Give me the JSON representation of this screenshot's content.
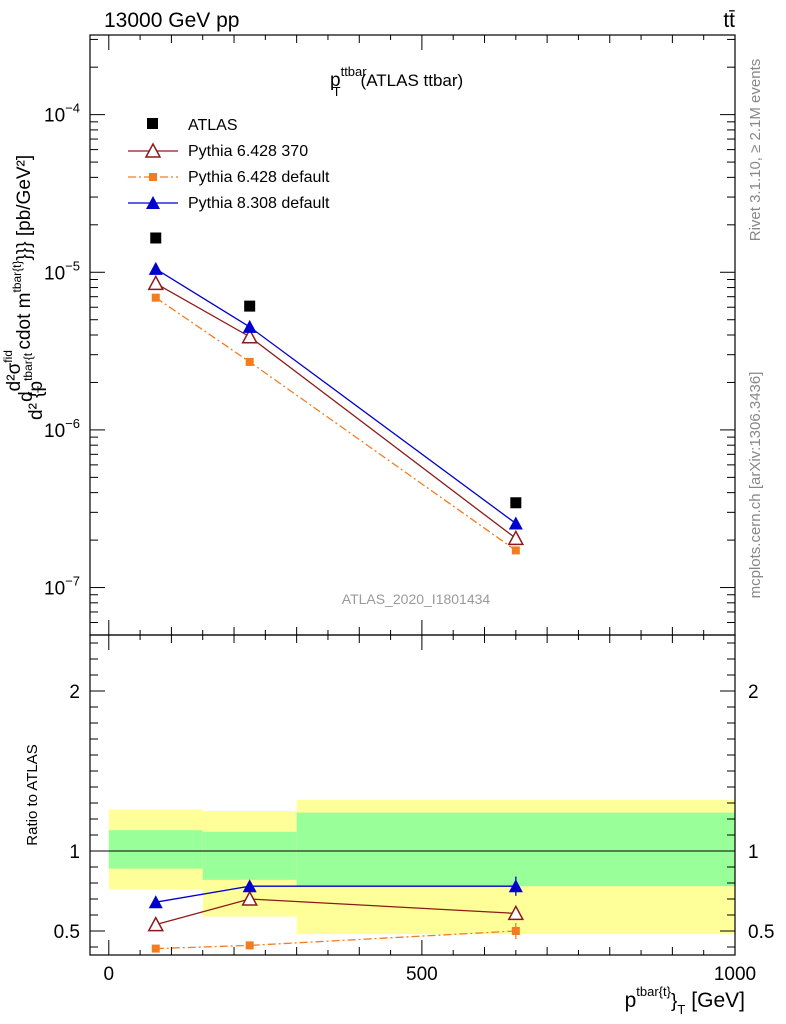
{
  "header": {
    "left": "13000 GeV pp",
    "right": "tt̄",
    "side_top": "Rivet 3.1.10, ≥ 2.1M events",
    "side_bottom": "mcplots.cern.ch [arXiv:1306.3436]",
    "watermark": "ATLAS_2020_I1801434"
  },
  "chart_data": [
    {
      "type": "scatter",
      "panel": "main",
      "title_main": "p",
      "title_sub": "T",
      "title_sup": "ttbar",
      "title_rest": "(ATLAS ttbar)",
      "ylabel": "d²σ^fid / d²{p_T^tbar{t}} cdot m^tbar{t}}} [pb/GeV²]",
      "ylabel_parts": {
        "d": "d",
        "num": "d²σ",
        "num_sup": "fid",
        "den": "d² {p",
        "den_sup": "tbar{t",
        "den_sub": "T",
        "rest": "cdot m",
        "rest_sup": "tbar{t}",
        "tail": "}}} [pb/GeV²]"
      },
      "y_scale": "log",
      "ylim": [
        5e-08,
        0.00032
      ],
      "xlim": [
        -30,
        1000
      ],
      "y_ticks": [
        {
          "v": 1e-07,
          "base": "10",
          "exp": "−7"
        },
        {
          "v": 1e-06,
          "base": "10",
          "exp": "−6"
        },
        {
          "v": 1e-05,
          "base": "10",
          "exp": "−5"
        },
        {
          "v": 0.0001,
          "base": "10",
          "exp": "−4"
        }
      ],
      "legend_position": "top-left",
      "series": [
        {
          "name": "ATLAS",
          "color": "#000000",
          "marker": "square",
          "line": "none",
          "x": [
            75,
            225,
            650
          ],
          "y": [
            1.65e-05,
            6.1e-06,
            3.45e-07
          ]
        },
        {
          "name": "Pythia 6.428 370",
          "color": "#8b1a1a",
          "marker": "open-triangle",
          "line": "solid",
          "x": [
            75,
            225,
            650
          ],
          "y": [
            8.5e-06,
            3.9e-06,
            2.05e-07
          ]
        },
        {
          "name": "Pythia 6.428 default",
          "color": "#f47c20",
          "marker": "small-square",
          "line": "dashdot",
          "x": [
            75,
            225,
            650
          ],
          "y": [
            6.9e-06,
            2.7e-06,
            1.72e-07
          ]
        },
        {
          "name": "Pythia 8.308 default",
          "color": "#0000cc",
          "marker": "filled-triangle",
          "line": "solid",
          "x": [
            75,
            225,
            650
          ],
          "y": [
            1.05e-05,
            4.5e-06,
            2.55e-07
          ]
        }
      ]
    },
    {
      "type": "scatter",
      "panel": "ratio",
      "ylabel": "Ratio to ATLAS",
      "xlabel_parts": {
        "p": "p",
        "sup": "tbar{t}",
        "close": "}",
        "sub": "T",
        "unit": "[GeV]"
      },
      "ylim": [
        0.35,
        2.35
      ],
      "xlim": [
        -30,
        1000
      ],
      "x_ticks": [
        0,
        500,
        1000
      ],
      "y_ticks": [
        {
          "v": 0.5,
          "label": "0.5"
        },
        {
          "v": 1,
          "label": "1"
        },
        {
          "v": 2,
          "label": "2"
        }
      ],
      "bands": [
        {
          "x0": 0,
          "x1": 150,
          "yellow": [
            0.76,
            1.26
          ],
          "green": [
            0.89,
            1.13
          ]
        },
        {
          "x0": 150,
          "x1": 300,
          "yellow": [
            0.59,
            1.25
          ],
          "green": [
            0.82,
            1.12
          ]
        },
        {
          "x0": 300,
          "x1": 1000,
          "yellow": [
            0.48,
            1.32
          ],
          "green": [
            0.78,
            1.24
          ]
        }
      ],
      "series": [
        {
          "name": "Pythia 6.428 370",
          "color": "#8b1a1a",
          "marker": "open-triangle",
          "line": "solid",
          "x": [
            75,
            225,
            650
          ],
          "y": [
            0.54,
            0.7,
            0.61
          ],
          "err": [
            0.015,
            0.02,
            0.04
          ]
        },
        {
          "name": "Pythia 6.428 default",
          "color": "#f47c20",
          "marker": "small-square",
          "line": "dashdot",
          "x": [
            75,
            225,
            650
          ],
          "y": [
            0.39,
            0.41,
            0.5
          ],
          "err": [
            0.015,
            0.025,
            0.05
          ]
        },
        {
          "name": "Pythia 8.308 default",
          "color": "#0000cc",
          "marker": "filled-triangle",
          "line": "solid",
          "x": [
            75,
            225,
            650
          ],
          "y": [
            0.68,
            0.78,
            0.78
          ],
          "err": [
            0.02,
            0.03,
            0.06
          ]
        }
      ]
    }
  ]
}
